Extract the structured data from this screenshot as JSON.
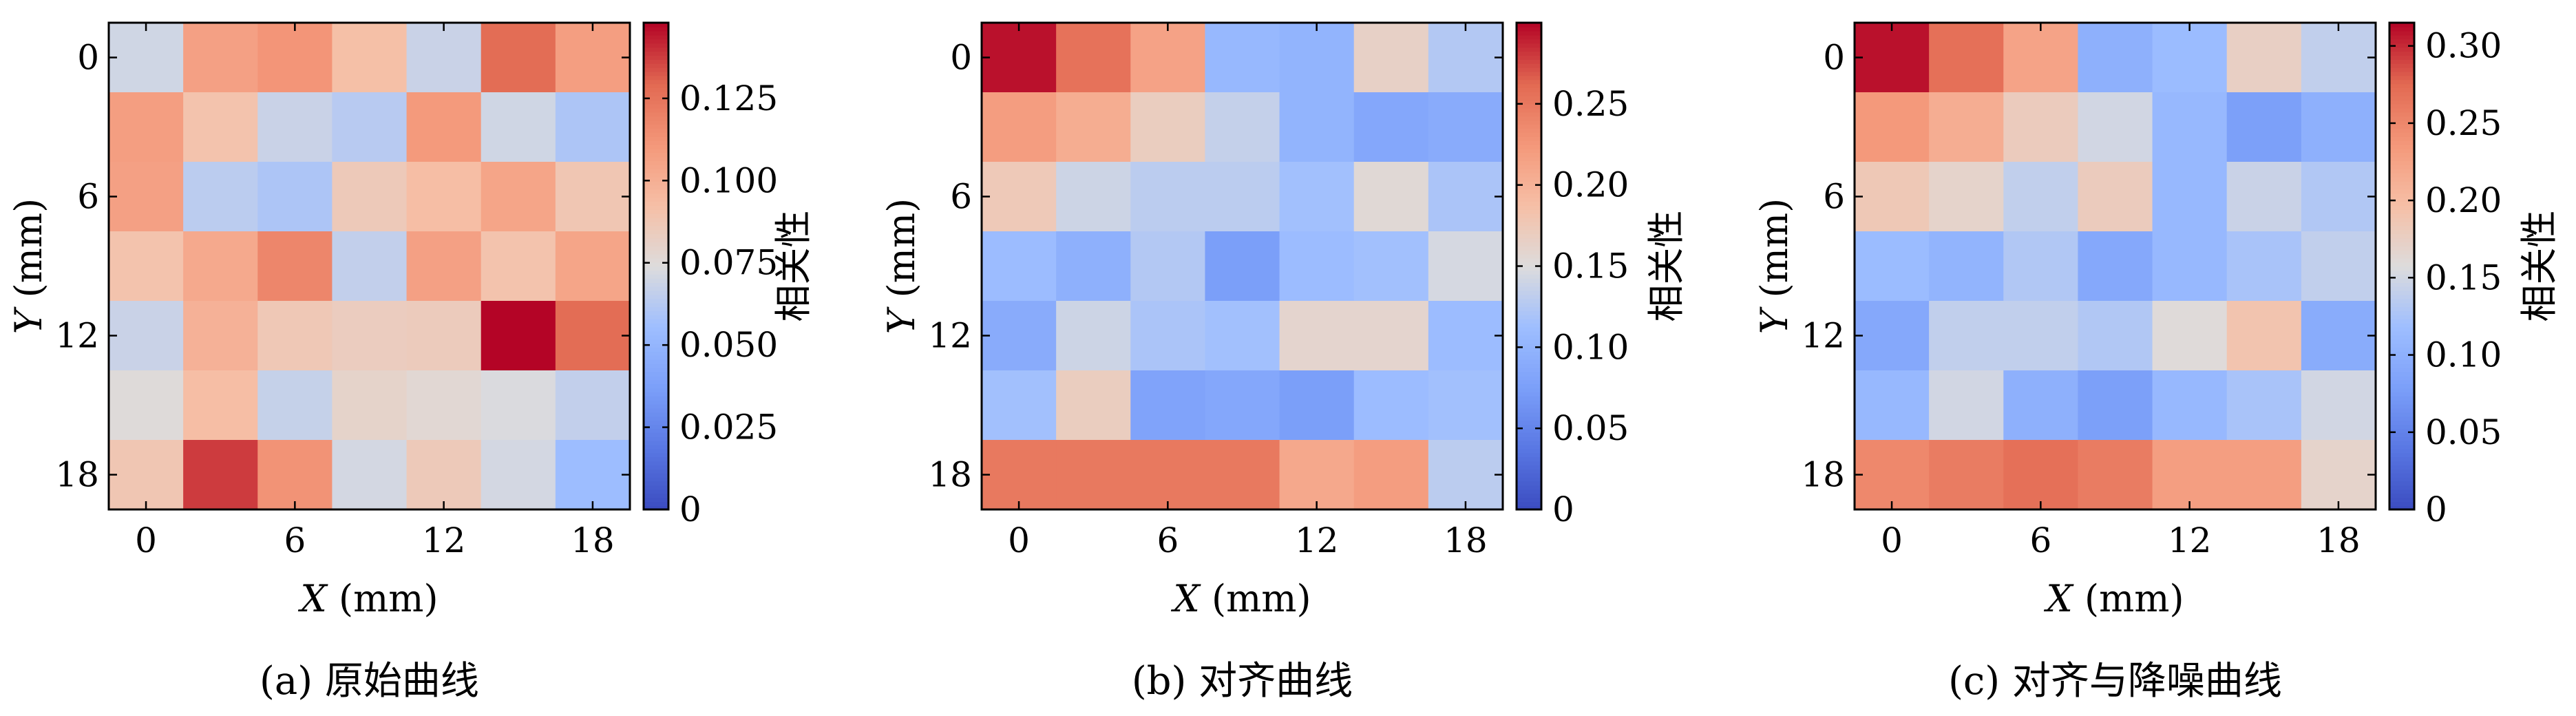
{
  "colormap": {
    "name": "coolwarm",
    "stops": [
      [
        0.0,
        "#3b4cc0"
      ],
      [
        0.125,
        "#5977e3"
      ],
      [
        0.25,
        "#7b9ff9"
      ],
      [
        0.375,
        "#9ebeff"
      ],
      [
        0.5,
        "#dddcdc"
      ],
      [
        0.625,
        "#f6bfa6"
      ],
      [
        0.75,
        "#f4987a"
      ],
      [
        0.875,
        "#e26952"
      ],
      [
        1.0,
        "#b40426"
      ]
    ]
  },
  "chart_data": [
    {
      "type": "heatmap",
      "caption": "(a) 原始曲线",
      "xlabel_var": "X",
      "xlabel_unit": "(mm)",
      "ylabel_var": "Y",
      "ylabel_unit": "(mm)",
      "xticks": [
        "0",
        "6",
        "12",
        "18"
      ],
      "yticks": [
        "0",
        "6",
        "12",
        "18"
      ],
      "xlim": [
        -1.5,
        19.5
      ],
      "ylim": [
        -1.5,
        19.5
      ],
      "grid": false,
      "colorbar": {
        "label": "相关性",
        "min": 0.0,
        "max": 0.148,
        "ticks": [
          {
            "v": 0,
            "t": "0"
          },
          {
            "v": 0.025,
            "t": "0.025"
          },
          {
            "v": 0.05,
            "t": "0.050"
          },
          {
            "v": 0.075,
            "t": "0.075"
          },
          {
            "v": 0.1,
            "t": "0.100"
          },
          {
            "v": 0.125,
            "t": "0.125"
          }
        ]
      },
      "values": [
        [
          0.07,
          0.107,
          0.112,
          0.092,
          0.068,
          0.128,
          0.108
        ],
        [
          0.108,
          0.09,
          0.068,
          0.063,
          0.11,
          0.07,
          0.06
        ],
        [
          0.107,
          0.064,
          0.06,
          0.086,
          0.093,
          0.105,
          0.088
        ],
        [
          0.09,
          0.103,
          0.118,
          0.066,
          0.107,
          0.09,
          0.105
        ],
        [
          0.068,
          0.099,
          0.087,
          0.084,
          0.085,
          0.148,
          0.128
        ],
        [
          0.075,
          0.093,
          0.067,
          0.08,
          0.077,
          0.073,
          0.066
        ],
        [
          0.088,
          0.138,
          0.113,
          0.071,
          0.086,
          0.071,
          0.055
        ]
      ]
    },
    {
      "type": "heatmap",
      "caption": "(b) 对齐曲线",
      "xlabel_var": "X",
      "xlabel_unit": "(mm)",
      "ylabel_var": "Y",
      "ylabel_unit": "(mm)",
      "xticks": [
        "0",
        "6",
        "12",
        "18"
      ],
      "yticks": [
        "0",
        "6",
        "12",
        "18"
      ],
      "xlim": [
        -1.5,
        19.5
      ],
      "ylim": [
        -1.5,
        19.5
      ],
      "grid": false,
      "colorbar": {
        "label": "相关性",
        "min": 0.0,
        "max": 0.3,
        "ticks": [
          {
            "v": 0,
            "t": "0"
          },
          {
            "v": 0.05,
            "t": "0.05"
          },
          {
            "v": 0.1,
            "t": "0.10"
          },
          {
            "v": 0.15,
            "t": "0.15"
          },
          {
            "v": 0.2,
            "t": "0.20"
          },
          {
            "v": 0.25,
            "t": "0.25"
          }
        ]
      },
      "values": [
        [
          0.295,
          0.255,
          0.215,
          0.105,
          0.1,
          0.165,
          0.125
        ],
        [
          0.22,
          0.205,
          0.17,
          0.135,
          0.1,
          0.085,
          0.09
        ],
        [
          0.175,
          0.14,
          0.13,
          0.13,
          0.115,
          0.155,
          0.12
        ],
        [
          0.11,
          0.095,
          0.125,
          0.075,
          0.11,
          0.115,
          0.145
        ],
        [
          0.09,
          0.14,
          0.12,
          0.115,
          0.16,
          0.16,
          0.11
        ],
        [
          0.115,
          0.17,
          0.08,
          0.085,
          0.075,
          0.11,
          0.115
        ],
        [
          0.25,
          0.25,
          0.25,
          0.25,
          0.21,
          0.22,
          0.13
        ]
      ]
    },
    {
      "type": "heatmap",
      "caption": "(c) 对齐与降噪曲线",
      "xlabel_var": "X",
      "xlabel_unit": "(mm)",
      "ylabel_var": "Y",
      "ylabel_unit": "(mm)",
      "xticks": [
        "0",
        "6",
        "12",
        "18"
      ],
      "yticks": [
        "0",
        "6",
        "12",
        "18"
      ],
      "xlim": [
        -1.5,
        19.5
      ],
      "ylim": [
        -1.5,
        19.5
      ],
      "grid": false,
      "colorbar": {
        "label": "相关性",
        "min": 0.0,
        "max": 0.315,
        "ticks": [
          {
            "v": 0,
            "t": "0"
          },
          {
            "v": 0.05,
            "t": "0.05"
          },
          {
            "v": 0.1,
            "t": "0.10"
          },
          {
            "v": 0.15,
            "t": "0.15"
          },
          {
            "v": 0.2,
            "t": "0.20"
          },
          {
            "v": 0.25,
            "t": "0.25"
          },
          {
            "v": 0.3,
            "t": "0.30"
          }
        ]
      },
      "values": [
        [
          0.31,
          0.27,
          0.225,
          0.1,
          0.115,
          0.175,
          0.14
        ],
        [
          0.235,
          0.215,
          0.18,
          0.15,
          0.11,
          0.08,
          0.1
        ],
        [
          0.185,
          0.17,
          0.14,
          0.18,
          0.11,
          0.145,
          0.13
        ],
        [
          0.115,
          0.105,
          0.13,
          0.09,
          0.11,
          0.125,
          0.14
        ],
        [
          0.09,
          0.14,
          0.14,
          0.13,
          0.16,
          0.19,
          0.095
        ],
        [
          0.11,
          0.15,
          0.1,
          0.08,
          0.11,
          0.125,
          0.15
        ],
        [
          0.25,
          0.26,
          0.27,
          0.26,
          0.23,
          0.23,
          0.17
        ]
      ]
    }
  ]
}
